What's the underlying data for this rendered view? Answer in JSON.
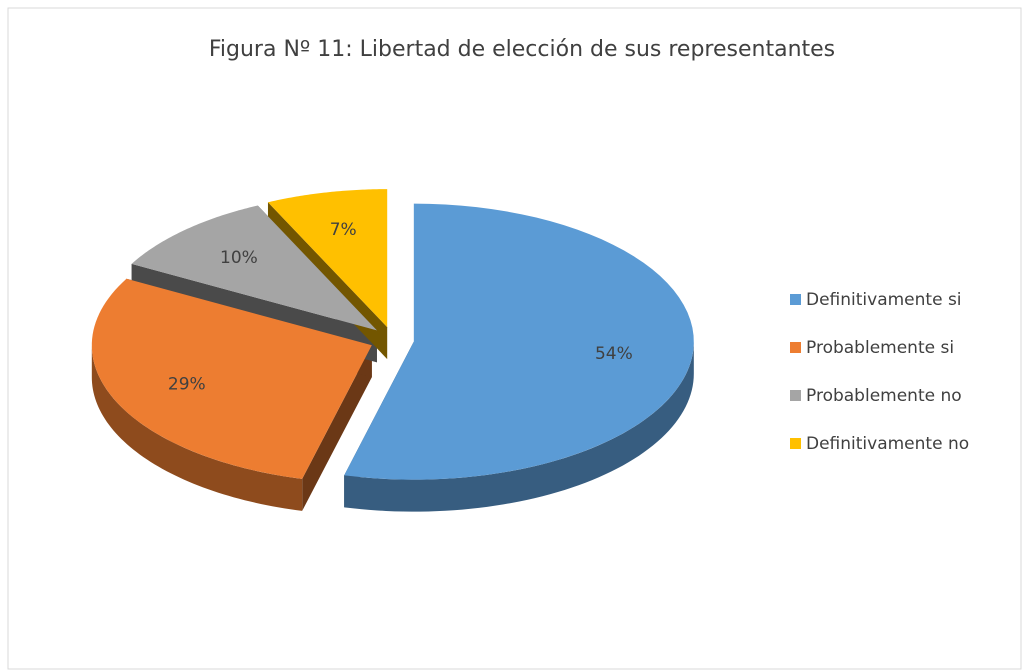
{
  "chart_data": {
    "type": "pie",
    "title": "Figura Nº  11: Libertad de elección de sus representantes",
    "categories": [
      "Definitivamente si",
      "Probablemente si",
      "Probablemente no",
      "Definitivamente no"
    ],
    "values": [
      54,
      29,
      10,
      7
    ],
    "value_labels": [
      "54%",
      "29%",
      "10%",
      "7%"
    ],
    "colors": [
      "#5b9bd5",
      "#ed7d31",
      "#a5a5a5",
      "#ffc000"
    ],
    "legend": "right"
  }
}
